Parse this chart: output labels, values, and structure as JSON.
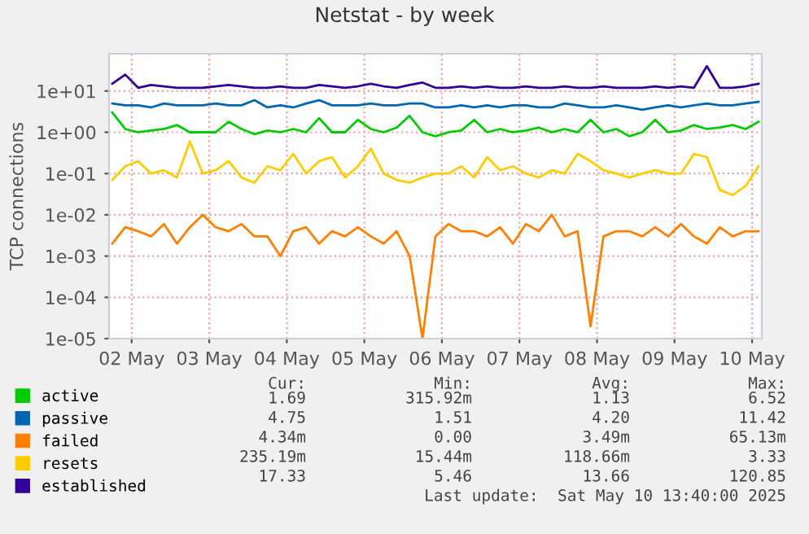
{
  "chart_data": {
    "type": "line",
    "title": "Netstat - by week",
    "ylabel": "TCP connections",
    "log": true,
    "grid": true,
    "legend": "bottom",
    "xlim": [
      "2025-05-01T17:00",
      "2025-05-10T03:00"
    ],
    "xticks": [
      {
        "value": "2025-05-02",
        "label": "02 May"
      },
      {
        "value": "2025-05-03",
        "label": "03 May"
      },
      {
        "value": "2025-05-04",
        "label": "04 May"
      },
      {
        "value": "2025-05-05",
        "label": "05 May"
      },
      {
        "value": "2025-05-06",
        "label": "06 May"
      },
      {
        "value": "2025-05-07",
        "label": "07 May"
      },
      {
        "value": "2025-05-08",
        "label": "08 May"
      },
      {
        "value": "2025-05-09",
        "label": "09 May"
      },
      {
        "value": "2025-05-10",
        "label": "10 May"
      }
    ],
    "ylim": [
      1e-05,
      80
    ],
    "yticks": [
      {
        "value": 1e-05,
        "label": "1e-05"
      },
      {
        "value": 0.0001,
        "label": "1e-04"
      },
      {
        "value": 0.001,
        "label": "1e-03"
      },
      {
        "value": 0.01,
        "label": "1e-02"
      },
      {
        "value": 0.1,
        "label": "1e-01"
      },
      {
        "value": 1,
        "label": "1e+00"
      },
      {
        "value": 10,
        "label": "1e+01"
      }
    ],
    "x": [
      "2025-05-01T18:00",
      "2025-05-01T22:00",
      "2025-05-02T02:00",
      "2025-05-02T06:00",
      "2025-05-02T10:00",
      "2025-05-02T14:00",
      "2025-05-02T18:00",
      "2025-05-02T22:00",
      "2025-05-03T02:00",
      "2025-05-03T06:00",
      "2025-05-03T10:00",
      "2025-05-03T14:00",
      "2025-05-03T18:00",
      "2025-05-03T22:00",
      "2025-05-04T02:00",
      "2025-05-04T06:00",
      "2025-05-04T10:00",
      "2025-05-04T14:00",
      "2025-05-04T18:00",
      "2025-05-04T22:00",
      "2025-05-05T02:00",
      "2025-05-05T06:00",
      "2025-05-05T10:00",
      "2025-05-05T14:00",
      "2025-05-05T18:00",
      "2025-05-05T22:00",
      "2025-05-06T02:00",
      "2025-05-06T06:00",
      "2025-05-06T10:00",
      "2025-05-06T14:00",
      "2025-05-06T18:00",
      "2025-05-06T22:00",
      "2025-05-07T02:00",
      "2025-05-07T06:00",
      "2025-05-07T10:00",
      "2025-05-07T14:00",
      "2025-05-07T18:00",
      "2025-05-07T22:00",
      "2025-05-08T02:00",
      "2025-05-08T06:00",
      "2025-05-08T10:00",
      "2025-05-08T14:00",
      "2025-05-08T18:00",
      "2025-05-08T22:00",
      "2025-05-09T02:00",
      "2025-05-09T06:00",
      "2025-05-09T10:00",
      "2025-05-09T14:00",
      "2025-05-09T18:00",
      "2025-05-09T22:00",
      "2025-05-10T02:00"
    ],
    "series": [
      {
        "name": "active",
        "color": "#00cc00",
        "values": [
          3,
          1.2,
          1,
          1.1,
          1.2,
          1.5,
          1,
          1,
          1,
          1.8,
          1.2,
          0.9,
          1.1,
          1,
          1.2,
          1,
          2.2,
          1,
          1,
          2,
          1.2,
          1,
          1.3,
          2.5,
          1,
          0.8,
          1,
          1.1,
          2,
          1,
          1.2,
          1,
          1.1,
          1.3,
          1,
          1.2,
          1,
          2,
          1,
          1.2,
          0.8,
          1,
          2,
          1,
          1.1,
          1.5,
          1.2,
          1.3,
          1.5,
          1.2,
          1.8
        ]
      },
      {
        "name": "passive",
        "color": "#0066b3",
        "values": [
          5,
          4.5,
          4.5,
          4,
          5,
          4.5,
          4.5,
          4.5,
          5,
          4.5,
          4.5,
          6,
          4,
          4.5,
          4,
          5,
          6,
          4.5,
          4.5,
          4.5,
          5,
          4.5,
          4.5,
          5,
          5,
          4,
          4,
          4.5,
          4,
          4.5,
          4,
          4.5,
          4.5,
          4,
          4,
          5,
          4.5,
          4,
          4,
          4.5,
          4,
          3.5,
          4,
          4.5,
          4,
          4.5,
          5,
          4.5,
          4.5,
          5,
          5.5
        ]
      },
      {
        "name": "failed",
        "color": "#ff8000",
        "values": [
          0.002,
          0.005,
          0.004,
          0.003,
          0.006,
          0.002,
          0.005,
          0.01,
          0.005,
          0.004,
          0.006,
          0.003,
          0.003,
          0.001,
          0.004,
          0.005,
          0.002,
          0.004,
          0.003,
          0.005,
          0.003,
          0.002,
          0.004,
          0.001,
          1e-05,
          0.003,
          0.006,
          0.004,
          0.004,
          0.003,
          0.005,
          0.002,
          0.006,
          0.004,
          0.01,
          0.003,
          0.004,
          2e-05,
          0.003,
          0.004,
          0.004,
          0.003,
          0.005,
          0.003,
          0.006,
          0.003,
          0.002,
          0.005,
          0.003,
          0.004,
          0.004
        ]
      },
      {
        "name": "resets",
        "color": "#ffcc00",
        "values": [
          0.07,
          0.15,
          0.2,
          0.1,
          0.12,
          0.08,
          0.6,
          0.1,
          0.12,
          0.2,
          0.08,
          0.06,
          0.15,
          0.12,
          0.3,
          0.1,
          0.2,
          0.25,
          0.08,
          0.15,
          0.4,
          0.1,
          0.07,
          0.06,
          0.08,
          0.1,
          0.1,
          0.15,
          0.08,
          0.25,
          0.12,
          0.15,
          0.1,
          0.08,
          0.12,
          0.1,
          0.3,
          0.2,
          0.12,
          0.1,
          0.08,
          0.1,
          0.12,
          0.1,
          0.1,
          0.3,
          0.25,
          0.04,
          0.03,
          0.05,
          0.15
        ]
      },
      {
        "name": "established",
        "color": "#330099",
        "values": [
          15,
          25,
          12,
          14,
          13,
          12,
          12,
          12,
          13,
          14,
          13,
          12,
          12,
          13,
          12,
          12,
          14,
          13,
          12,
          13,
          15,
          13,
          12,
          14,
          16,
          12,
          12,
          13,
          12,
          13,
          12,
          12,
          13,
          12,
          12,
          13,
          12,
          12,
          13,
          12,
          12,
          12,
          13,
          12,
          13,
          12,
          40,
          12,
          12,
          13,
          15
        ]
      }
    ],
    "annotations": [
      "Cur:",
      "Min:",
      "Avg:",
      "Max:",
      "1.69",
      "315.92m",
      "1.13",
      "6.52",
      "4.75",
      "1.51",
      "4.20",
      "11.42",
      "4.34m",
      "0.00",
      "3.49m",
      "65.13m",
      "235.19m",
      "15.44m",
      "118.66m",
      "3.33",
      "17.33",
      "5.46",
      "13.66",
      "120.85",
      "Last update:  Sat May 10 13:40:00 2025"
    ]
  }
}
